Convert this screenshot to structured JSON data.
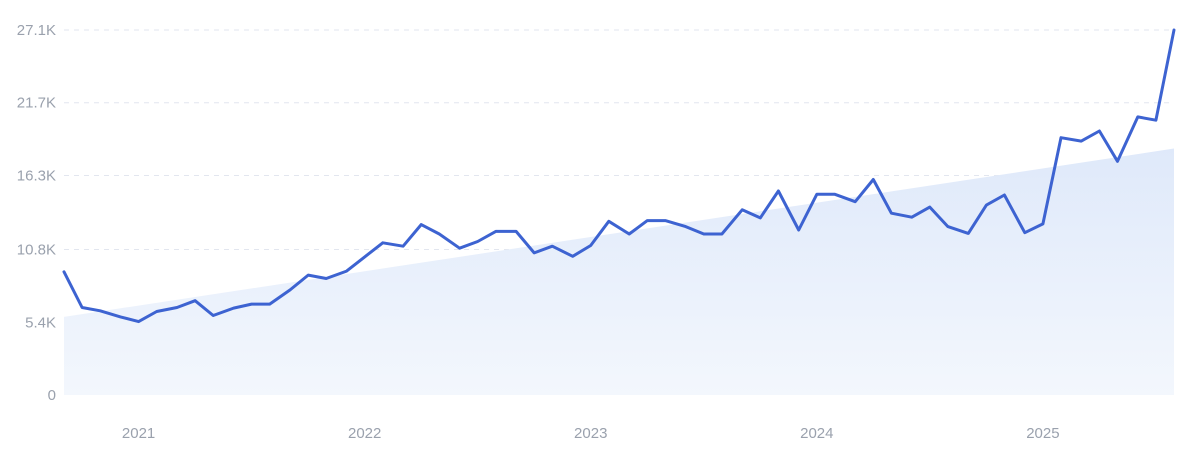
{
  "chart_data": {
    "type": "line",
    "title": "",
    "xlabel": "",
    "ylabel": "",
    "ylim": [
      0,
      27100
    ],
    "grid": true,
    "x_ticks": [
      {
        "label": "2021",
        "value": 2021.0
      },
      {
        "label": "2022",
        "value": 2022.0
      },
      {
        "label": "2023",
        "value": 2023.0
      },
      {
        "label": "2024",
        "value": 2024.0
      },
      {
        "label": "2025",
        "value": 2025.0
      }
    ],
    "y_ticks": [
      {
        "label": "0",
        "value": 0
      },
      {
        "label": "5.4K",
        "value": 5400
      },
      {
        "label": "10.8K",
        "value": 10800
      },
      {
        "label": "16.3K",
        "value": 16300
      },
      {
        "label": "21.7K",
        "value": 21700
      },
      {
        "label": "27.1K",
        "value": 27100
      }
    ],
    "xlim": [
      2020.67,
      2025.58
    ],
    "series": [
      {
        "points": [
          [
            2020.67,
            9150
          ],
          [
            2020.75,
            6500
          ],
          [
            2020.83,
            6250
          ],
          [
            2020.92,
            5800
          ],
          [
            2021.0,
            5450
          ],
          [
            2021.08,
            6200
          ],
          [
            2021.17,
            6500
          ],
          [
            2021.25,
            7000
          ],
          [
            2021.33,
            5900
          ],
          [
            2021.42,
            6450
          ],
          [
            2021.5,
            6750
          ],
          [
            2021.58,
            6750
          ],
          [
            2021.67,
            7800
          ],
          [
            2021.75,
            8900
          ],
          [
            2021.83,
            8650
          ],
          [
            2021.92,
            9200
          ],
          [
            2022.0,
            10250
          ],
          [
            2022.08,
            11300
          ],
          [
            2022.17,
            11050
          ],
          [
            2022.25,
            12650
          ],
          [
            2022.33,
            11950
          ],
          [
            2022.42,
            10900
          ],
          [
            2022.5,
            11400
          ],
          [
            2022.58,
            12150
          ],
          [
            2022.67,
            12150
          ],
          [
            2022.75,
            10550
          ],
          [
            2022.83,
            11050
          ],
          [
            2022.92,
            10300
          ],
          [
            2023.0,
            11100
          ],
          [
            2023.08,
            12900
          ],
          [
            2023.17,
            11950
          ],
          [
            2023.25,
            12950
          ],
          [
            2023.33,
            12950
          ],
          [
            2023.42,
            12500
          ],
          [
            2023.5,
            11950
          ],
          [
            2023.58,
            11950
          ],
          [
            2023.67,
            13750
          ],
          [
            2023.75,
            13150
          ],
          [
            2023.83,
            15150
          ],
          [
            2023.92,
            12250
          ],
          [
            2024.0,
            14900
          ],
          [
            2024.08,
            14900
          ],
          [
            2024.17,
            14350
          ],
          [
            2024.25,
            16000
          ],
          [
            2024.33,
            13500
          ],
          [
            2024.42,
            13200
          ],
          [
            2024.5,
            13950
          ],
          [
            2024.58,
            12500
          ],
          [
            2024.67,
            12000
          ],
          [
            2024.75,
            14100
          ],
          [
            2024.83,
            14850
          ],
          [
            2024.92,
            12050
          ],
          [
            2025.0,
            12700
          ],
          [
            2025.08,
            19100
          ],
          [
            2025.17,
            18850
          ],
          [
            2025.25,
            19600
          ],
          [
            2025.33,
            17350
          ],
          [
            2025.42,
            20650
          ],
          [
            2025.5,
            20400
          ],
          [
            2025.58,
            27100
          ]
        ]
      }
    ],
    "trend": {
      "start": [
        2020.67,
        5800
      ],
      "end": [
        2025.58,
        18300
      ]
    },
    "colors": {
      "line": "#3d63d1",
      "trend_fill_top": "#dfe9fa",
      "trend_fill_bottom": "#f3f7fd",
      "grid": "#e2e6ef",
      "tick_label": "#9aa1ad"
    }
  }
}
